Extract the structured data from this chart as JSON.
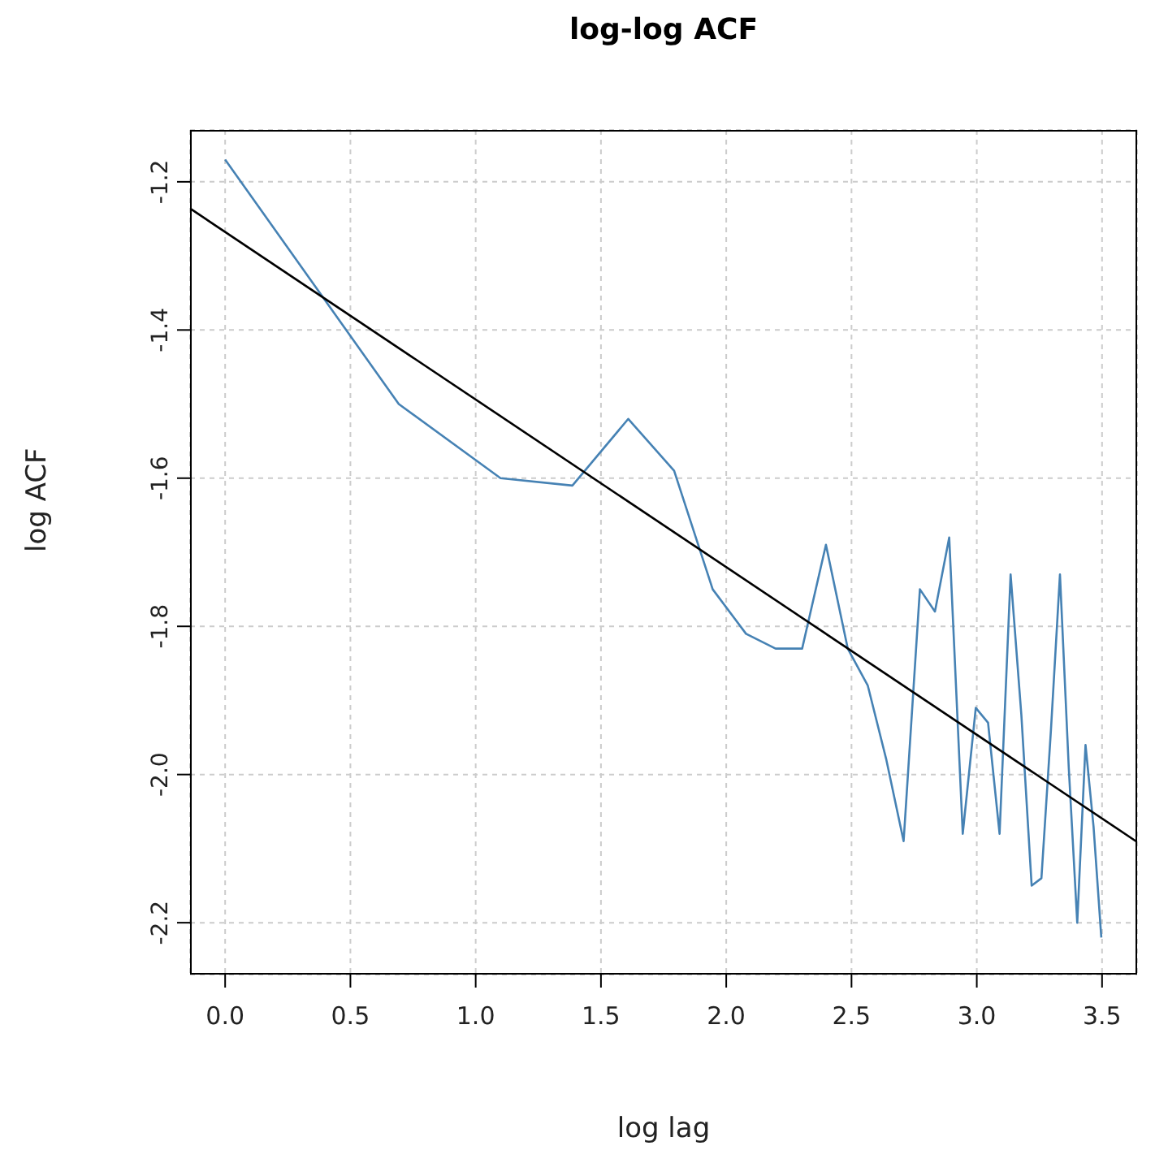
{
  "chart_data": {
    "type": "line",
    "title": "log-log ACF",
    "xlabel": "log lag",
    "ylabel": "log ACF",
    "xlim": [
      -0.14,
      3.64
    ],
    "xticks": [
      {
        "value": 0,
        "label": "0.0"
      },
      {
        "value": 0.5,
        "label": "0.5"
      },
      {
        "value": 1,
        "label": "1.0"
      },
      {
        "value": 1.5,
        "label": "1.5"
      },
      {
        "value": 2,
        "label": "2.0"
      },
      {
        "value": 2.5,
        "label": "2.5"
      },
      {
        "value": 3,
        "label": "3.0"
      },
      {
        "value": 3.5,
        "label": "3.5"
      }
    ],
    "ylim": [
      -2.27,
      -1.13
    ],
    "yticks": [
      {
        "value": -2.2,
        "label": "-2.2"
      },
      {
        "value": -2,
        "label": "-2.0"
      },
      {
        "value": -1.8,
        "label": "-1.8"
      },
      {
        "value": -1.6,
        "label": "-1.6"
      },
      {
        "value": -1.4,
        "label": "-1.4"
      },
      {
        "value": -1.2,
        "label": "-1.2"
      }
    ],
    "grid": true,
    "marker": "none",
    "line_style": "solid",
    "series": [
      {
        "color": "#4682b4",
        "x": [
          0,
          0.693,
          1.099,
          1.386,
          1.609,
          1.792,
          1.946,
          2.079,
          2.197,
          2.303,
          2.398,
          2.485,
          2.565,
          2.639,
          2.708,
          2.773,
          2.833,
          2.89,
          2.944,
          2.996,
          3.045,
          3.091,
          3.135,
          3.178,
          3.219,
          3.258,
          3.296,
          3.332,
          3.367,
          3.401,
          3.434,
          3.466,
          3.497
        ],
        "values": [
          -1.17,
          -1.5,
          -1.6,
          -1.61,
          -1.52,
          -1.59,
          -1.75,
          -1.81,
          -1.83,
          -1.83,
          -1.69,
          -1.83,
          -1.88,
          -1.98,
          -2.09,
          -1.75,
          -1.78,
          -1.68,
          -2.08,
          -1.91,
          -1.93,
          -2.08,
          -1.73,
          -1.92,
          -2.15,
          -2.14,
          -1.94,
          -1.73,
          -1.99,
          -2.2,
          -1.96,
          -2.07,
          -2.22
        ]
      },
      {
        "type": "line",
        "color": "#000000",
        "x": [
          -0.14,
          3.64
        ],
        "values": [
          -1.236,
          -2.091
        ]
      }
    ]
  }
}
